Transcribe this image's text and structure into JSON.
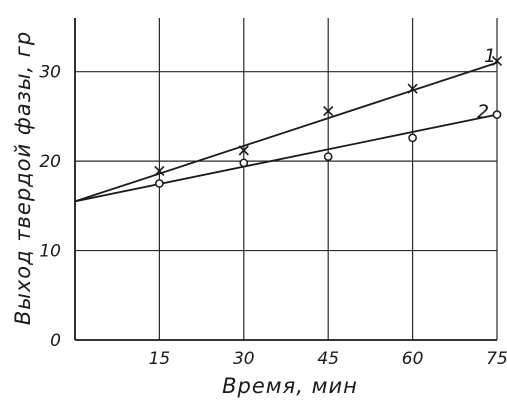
{
  "chart_data": {
    "type": "scatter",
    "title": "",
    "xlabel": "Время, мин",
    "ylabel": "Выход твердой фазы, гр",
    "xlim": [
      0,
      75
    ],
    "ylim": [
      0,
      36
    ],
    "x_ticks": [
      "15",
      "30",
      "45",
      "60",
      "75"
    ],
    "y_ticks": [
      "0",
      "10",
      "20",
      "30"
    ],
    "x_tick_values": [
      15,
      30,
      45,
      60,
      75
    ],
    "y_tick_values": [
      0,
      10,
      20,
      30
    ],
    "grid": true,
    "series": [
      {
        "name": "1",
        "marker": "x",
        "x": [
          15,
          30,
          45,
          60,
          75
        ],
        "y": [
          18.9,
          21.2,
          25.6,
          28.1,
          31.2
        ],
        "fit_line": {
          "x": [
            0,
            75
          ],
          "y": [
            15.5,
            31.0
          ]
        }
      },
      {
        "name": "2",
        "marker": "o",
        "x": [
          15,
          30,
          45,
          60,
          75
        ],
        "y": [
          17.5,
          19.8,
          20.5,
          22.6,
          25.2
        ],
        "fit_line": {
          "x": [
            0,
            75
          ],
          "y": [
            15.5,
            25.2
          ]
        }
      }
    ]
  },
  "colors": {
    "ink": "#1a1a1a",
    "grid": "#2a2a2a",
    "background": "#ffffff"
  }
}
